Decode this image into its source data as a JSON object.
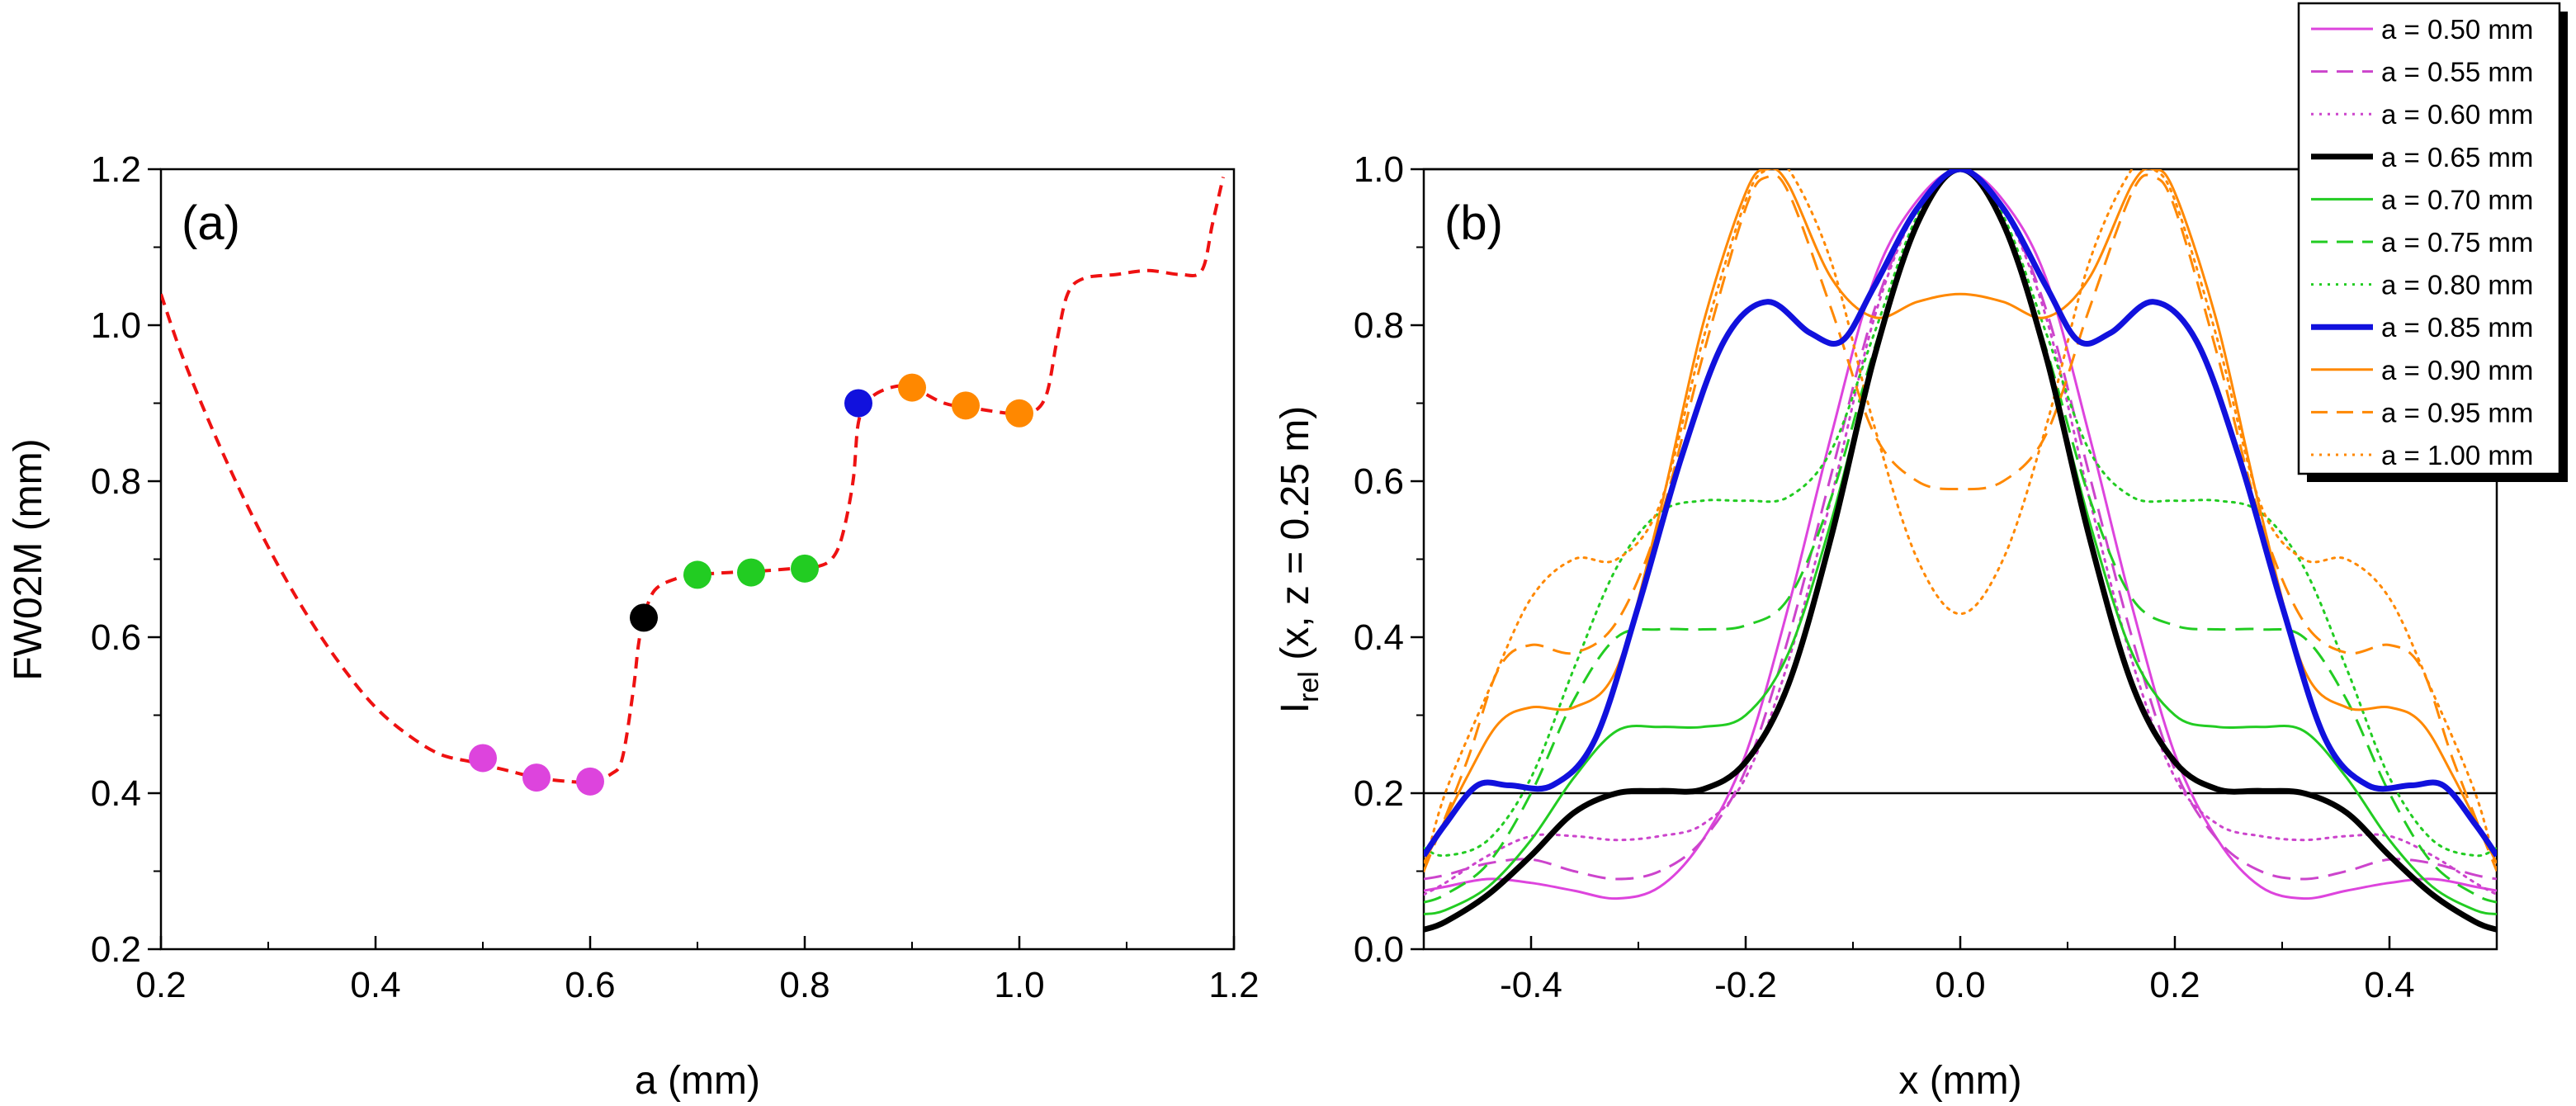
{
  "chart_data": [
    {
      "type": "scatter",
      "panel_label": "(a)",
      "xlabel": "a (mm)",
      "ylabel": "FW02M (mm)",
      "xlim": [
        0.2,
        1.2
      ],
      "ylim": [
        0.2,
        1.2
      ],
      "x_ticks": [
        "0.2",
        "0.4",
        "0.6",
        "0.8",
        "1.0",
        "1.2"
      ],
      "y_ticks": [
        "0.2",
        "0.4",
        "0.6",
        "0.8",
        "1.0",
        "1.2"
      ],
      "points": [
        {
          "x": 0.5,
          "y": 0.445,
          "color": "#dd44dd"
        },
        {
          "x": 0.55,
          "y": 0.42,
          "color": "#dd44dd"
        },
        {
          "x": 0.6,
          "y": 0.415,
          "color": "#dd44dd"
        },
        {
          "x": 0.65,
          "y": 0.625,
          "color": "#000000"
        },
        {
          "x": 0.7,
          "y": 0.68,
          "color": "#22cc22"
        },
        {
          "x": 0.75,
          "y": 0.683,
          "color": "#22cc22"
        },
        {
          "x": 0.8,
          "y": 0.688,
          "color": "#22cc22"
        },
        {
          "x": 0.85,
          "y": 0.9,
          "color": "#1111dd"
        },
        {
          "x": 0.9,
          "y": 0.92,
          "color": "#ff8800"
        },
        {
          "x": 0.95,
          "y": 0.897,
          "color": "#ff8800"
        },
        {
          "x": 1.0,
          "y": 0.887,
          "color": "#ff8800"
        }
      ],
      "curve": {
        "color": "#ee1111",
        "style": "dashed",
        "x": [
          0.2,
          0.22,
          0.25,
          0.28,
          0.31,
          0.34,
          0.37,
          0.4,
          0.43,
          0.46,
          0.49,
          0.52,
          0.55,
          0.58,
          0.6,
          0.62,
          0.63,
          0.64,
          0.645,
          0.65,
          0.66,
          0.68,
          0.7,
          0.73,
          0.76,
          0.79,
          0.81,
          0.825,
          0.835,
          0.845,
          0.85,
          0.86,
          0.88,
          0.9,
          0.93,
          0.96,
          0.99,
          1.01,
          1.025,
          1.035,
          1.045,
          1.06,
          1.09,
          1.12,
          1.15,
          1.17,
          1.18,
          1.19
        ],
        "y": [
          1.04,
          0.96,
          0.86,
          0.77,
          0.69,
          0.62,
          0.56,
          0.51,
          0.475,
          0.45,
          0.44,
          0.43,
          0.42,
          0.415,
          0.415,
          0.425,
          0.445,
          0.53,
          0.59,
          0.625,
          0.66,
          0.675,
          0.68,
          0.683,
          0.685,
          0.688,
          0.69,
          0.7,
          0.73,
          0.8,
          0.875,
          0.905,
          0.92,
          0.92,
          0.9,
          0.893,
          0.887,
          0.887,
          0.91,
          0.98,
          1.04,
          1.06,
          1.065,
          1.07,
          1.065,
          1.07,
          1.13,
          1.19
        ]
      }
    },
    {
      "type": "line",
      "panel_label": "(b)",
      "xlabel": "x (mm)",
      "ylabel_main": "I",
      "ylabel_sub": "rel",
      "ylabel_rest": " (x, z = 0.25 m)",
      "xlim": [
        -0.5,
        0.5
      ],
      "ylim": [
        0.0,
        1.0
      ],
      "x_ticks": [
        "-0.4",
        "-0.2",
        "0.0",
        "0.2",
        "0.4"
      ],
      "y_ticks": [
        "0.0",
        "0.2",
        "0.4",
        "0.6",
        "0.8",
        "1.0"
      ],
      "reference_lines_y": [
        0.2,
        1.0
      ],
      "series": [
        {
          "name": "a = 0.50 mm",
          "color": "#dd44dd",
          "style": "solid",
          "width": 3,
          "half": [
            [
              0,
              1.0
            ],
            [
              0.04,
              0.96
            ],
            [
              0.08,
              0.86
            ],
            [
              0.12,
              0.66
            ],
            [
              0.16,
              0.44
            ],
            [
              0.2,
              0.25
            ],
            [
              0.24,
              0.14
            ],
            [
              0.28,
              0.08
            ],
            [
              0.32,
              0.065
            ],
            [
              0.36,
              0.075
            ],
            [
              0.4,
              0.085
            ],
            [
              0.44,
              0.09
            ],
            [
              0.48,
              0.08
            ],
            [
              0.5,
              0.075
            ]
          ]
        },
        {
          "name": "a = 0.55 mm",
          "color": "#cc44cc",
          "style": "dashed",
          "width": 3,
          "half": [
            [
              0,
              1.0
            ],
            [
              0.04,
              0.95
            ],
            [
              0.08,
              0.82
            ],
            [
              0.12,
              0.61
            ],
            [
              0.16,
              0.4
            ],
            [
              0.2,
              0.23
            ],
            [
              0.24,
              0.14
            ],
            [
              0.28,
              0.1
            ],
            [
              0.32,
              0.09
            ],
            [
              0.36,
              0.1
            ],
            [
              0.4,
              0.115
            ],
            [
              0.44,
              0.11
            ],
            [
              0.48,
              0.095
            ],
            [
              0.5,
              0.09
            ]
          ]
        },
        {
          "name": "a = 0.60 mm",
          "color": "#cc44cc",
          "style": "dotted",
          "width": 3,
          "half": [
            [
              0,
              1.0
            ],
            [
              0.04,
              0.95
            ],
            [
              0.08,
              0.81
            ],
            [
              0.12,
              0.58
            ],
            [
              0.16,
              0.37
            ],
            [
              0.2,
              0.22
            ],
            [
              0.24,
              0.16
            ],
            [
              0.28,
              0.145
            ],
            [
              0.32,
              0.14
            ],
            [
              0.36,
              0.145
            ],
            [
              0.4,
              0.145
            ],
            [
              0.44,
              0.12
            ],
            [
              0.48,
              0.085
            ],
            [
              0.5,
              0.07
            ]
          ]
        },
        {
          "name": "a = 0.65 mm",
          "color": "#000000",
          "style": "solid",
          "width": 7,
          "half": [
            [
              0,
              1.0
            ],
            [
              0.04,
              0.93
            ],
            [
              0.08,
              0.76
            ],
            [
              0.12,
              0.53
            ],
            [
              0.16,
              0.34
            ],
            [
              0.2,
              0.24
            ],
            [
              0.24,
              0.205
            ],
            [
              0.28,
              0.203
            ],
            [
              0.32,
              0.2
            ],
            [
              0.36,
              0.175
            ],
            [
              0.4,
              0.12
            ],
            [
              0.44,
              0.07
            ],
            [
              0.48,
              0.035
            ],
            [
              0.5,
              0.025
            ]
          ]
        },
        {
          "name": "a = 0.70 mm",
          "color": "#22cc22",
          "style": "solid",
          "width": 3,
          "half": [
            [
              0,
              1.0
            ],
            [
              0.04,
              0.93
            ],
            [
              0.08,
              0.76
            ],
            [
              0.12,
              0.55
            ],
            [
              0.16,
              0.38
            ],
            [
              0.2,
              0.3
            ],
            [
              0.24,
              0.285
            ],
            [
              0.28,
              0.285
            ],
            [
              0.32,
              0.28
            ],
            [
              0.36,
              0.22
            ],
            [
              0.4,
              0.14
            ],
            [
              0.44,
              0.08
            ],
            [
              0.48,
              0.05
            ],
            [
              0.5,
              0.045
            ]
          ]
        },
        {
          "name": "a = 0.75 mm",
          "color": "#22cc22",
          "style": "dashed",
          "width": 3,
          "half": [
            [
              0,
              1.0
            ],
            [
              0.04,
              0.93
            ],
            [
              0.08,
              0.77
            ],
            [
              0.12,
              0.58
            ],
            [
              0.16,
              0.45
            ],
            [
              0.2,
              0.415
            ],
            [
              0.24,
              0.41
            ],
            [
              0.28,
              0.41
            ],
            [
              0.32,
              0.4
            ],
            [
              0.36,
              0.32
            ],
            [
              0.4,
              0.2
            ],
            [
              0.44,
              0.11
            ],
            [
              0.48,
              0.07
            ],
            [
              0.5,
              0.06
            ]
          ]
        },
        {
          "name": "a = 0.80 mm",
          "color": "#22cc22",
          "style": "dotted",
          "width": 3,
          "half": [
            [
              0,
              1.0
            ],
            [
              0.04,
              0.94
            ],
            [
              0.08,
              0.79
            ],
            [
              0.12,
              0.64
            ],
            [
              0.16,
              0.58
            ],
            [
              0.2,
              0.575
            ],
            [
              0.24,
              0.575
            ],
            [
              0.28,
              0.56
            ],
            [
              0.32,
              0.49
            ],
            [
              0.36,
              0.36
            ],
            [
              0.4,
              0.22
            ],
            [
              0.44,
              0.14
            ],
            [
              0.48,
              0.12
            ],
            [
              0.5,
              0.13
            ]
          ]
        },
        {
          "name": "a = 0.85 mm",
          "color": "#1111dd",
          "style": "solid",
          "width": 7,
          "half": [
            [
              0,
              1.0
            ],
            [
              0.04,
              0.95
            ],
            [
              0.08,
              0.85
            ],
            [
              0.11,
              0.78
            ],
            [
              0.14,
              0.79
            ],
            [
              0.18,
              0.83
            ],
            [
              0.22,
              0.78
            ],
            [
              0.26,
              0.63
            ],
            [
              0.3,
              0.44
            ],
            [
              0.34,
              0.27
            ],
            [
              0.38,
              0.21
            ],
            [
              0.42,
              0.21
            ],
            [
              0.45,
              0.21
            ],
            [
              0.48,
              0.16
            ],
            [
              0.5,
              0.12
            ]
          ]
        },
        {
          "name": "a = 0.90 mm",
          "color": "#ff8800",
          "style": "solid",
          "width": 3,
          "half": [
            [
              0,
              0.84
            ],
            [
              0.04,
              0.83
            ],
            [
              0.08,
              0.81
            ],
            [
              0.12,
              0.86
            ],
            [
              0.16,
              0.98
            ],
            [
              0.18,
              1.0
            ],
            [
              0.2,
              0.97
            ],
            [
              0.24,
              0.8
            ],
            [
              0.28,
              0.56
            ],
            [
              0.32,
              0.36
            ],
            [
              0.36,
              0.31
            ],
            [
              0.4,
              0.31
            ],
            [
              0.43,
              0.29
            ],
            [
              0.46,
              0.22
            ],
            [
              0.5,
              0.11
            ]
          ]
        },
        {
          "name": "a = 0.95 mm",
          "color": "#ff8800",
          "style": "dashed",
          "width": 3,
          "half": [
            [
              0,
              0.59
            ],
            [
              0.04,
              0.6
            ],
            [
              0.08,
              0.66
            ],
            [
              0.12,
              0.82
            ],
            [
              0.16,
              0.97
            ],
            [
              0.18,
              0.99
            ],
            [
              0.2,
              0.95
            ],
            [
              0.24,
              0.76
            ],
            [
              0.28,
              0.55
            ],
            [
              0.32,
              0.42
            ],
            [
              0.36,
              0.38
            ],
            [
              0.4,
              0.39
            ],
            [
              0.43,
              0.36
            ],
            [
              0.46,
              0.24
            ],
            [
              0.5,
              0.1
            ]
          ]
        },
        {
          "name": "a = 1.00 mm",
          "color": "#ff8800",
          "style": "dotted",
          "width": 3,
          "half": [
            [
              0,
              0.43
            ],
            [
              0.04,
              0.5
            ],
            [
              0.08,
              0.67
            ],
            [
              0.12,
              0.88
            ],
            [
              0.16,
              1.0
            ],
            [
              0.18,
              1.0
            ],
            [
              0.2,
              0.96
            ],
            [
              0.24,
              0.78
            ],
            [
              0.28,
              0.57
            ],
            [
              0.32,
              0.5
            ],
            [
              0.36,
              0.5
            ],
            [
              0.4,
              0.45
            ],
            [
              0.44,
              0.33
            ],
            [
              0.48,
              0.2
            ],
            [
              0.5,
              0.1
            ]
          ]
        }
      ]
    }
  ]
}
